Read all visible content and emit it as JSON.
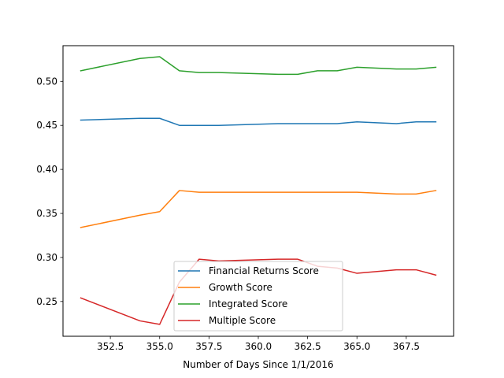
{
  "chart_data": {
    "type": "line",
    "title": "",
    "xlabel": "Number of Days Since 1/1/2016",
    "ylabel": "",
    "xlim": [
      350.1,
      369.9
    ],
    "ylim": [
      0.2105,
      0.5405
    ],
    "xticks": [
      352.5,
      355.0,
      357.5,
      360.0,
      362.5,
      365.0,
      367.5
    ],
    "xtick_labels": [
      "352.5",
      "355.0",
      "357.5",
      "360.0",
      "362.5",
      "365.0",
      "367.5"
    ],
    "yticks": [
      0.25,
      0.3,
      0.35,
      0.4,
      0.45,
      0.5
    ],
    "ytick_labels": [
      "0.25",
      "0.30",
      "0.35",
      "0.40",
      "0.45",
      "0.50"
    ],
    "grid": false,
    "legend_position": "lower-center",
    "x": [
      351,
      354,
      355,
      356,
      357,
      358,
      361,
      362,
      363,
      364,
      365,
      367,
      368,
      369
    ],
    "series": [
      {
        "name": "Financial Returns Score",
        "color": "#1f77b4",
        "values": [
          0.456,
          0.458,
          0.458,
          0.45,
          0.45,
          0.45,
          0.452,
          0.452,
          0.452,
          0.452,
          0.454,
          0.452,
          0.454,
          0.454
        ]
      },
      {
        "name": "Growth Score",
        "color": "#ff7f0e",
        "values": [
          0.334,
          0.348,
          0.352,
          0.376,
          0.374,
          0.374,
          0.374,
          0.374,
          0.374,
          0.374,
          0.374,
          0.372,
          0.372,
          0.376
        ]
      },
      {
        "name": "Integrated Score",
        "color": "#2ca02c",
        "values": [
          0.512,
          0.526,
          0.528,
          0.512,
          0.51,
          0.51,
          0.508,
          0.508,
          0.512,
          0.512,
          0.516,
          0.514,
          0.514,
          0.516
        ]
      },
      {
        "name": "Multiple Score",
        "color": "#d62728",
        "values": [
          0.254,
          0.228,
          0.224,
          0.272,
          0.298,
          0.296,
          0.298,
          0.298,
          0.29,
          0.288,
          0.282,
          0.286,
          0.286,
          0.28
        ]
      }
    ]
  }
}
